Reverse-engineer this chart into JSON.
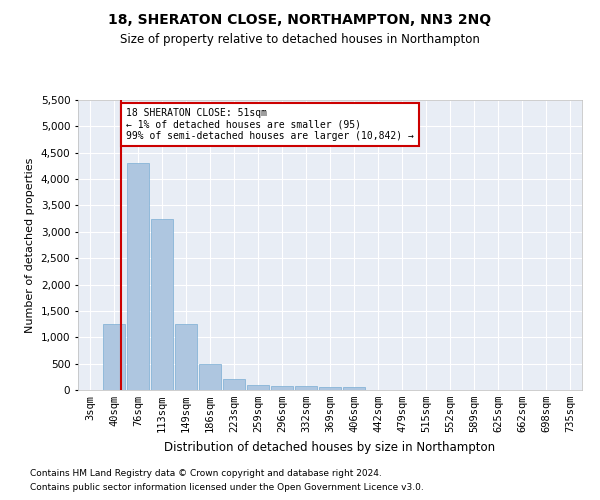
{
  "title": "18, SHERATON CLOSE, NORTHAMPTON, NN3 2NQ",
  "subtitle": "Size of property relative to detached houses in Northampton",
  "xlabel": "Distribution of detached houses by size in Northampton",
  "ylabel": "Number of detached properties",
  "footnote1": "Contains HM Land Registry data © Crown copyright and database right 2024.",
  "footnote2": "Contains public sector information licensed under the Open Government Licence v3.0.",
  "annotation_line1": "18 SHERATON CLOSE: 51sqm",
  "annotation_line2": "← 1% of detached houses are smaller (95)",
  "annotation_line3": "99% of semi-detached houses are larger (10,842) →",
  "property_size": 51,
  "bar_color": "#aec6e0",
  "bar_edge_color": "#7aadd4",
  "vline_color": "#cc0000",
  "annotation_box_color": "#cc0000",
  "background_color": "#e8edf5",
  "categories": [
    "3sqm",
    "40sqm",
    "76sqm",
    "113sqm",
    "149sqm",
    "186sqm",
    "223sqm",
    "259sqm",
    "296sqm",
    "332sqm",
    "369sqm",
    "406sqm",
    "442sqm",
    "479sqm",
    "515sqm",
    "552sqm",
    "589sqm",
    "625sqm",
    "662sqm",
    "698sqm",
    "735sqm"
  ],
  "values": [
    0,
    1250,
    4300,
    3250,
    1250,
    500,
    200,
    100,
    75,
    70,
    65,
    65,
    0,
    0,
    0,
    0,
    0,
    0,
    0,
    0,
    0
  ],
  "ylim": [
    0,
    5500
  ],
  "yticks": [
    0,
    500,
    1000,
    1500,
    2000,
    2500,
    3000,
    3500,
    4000,
    4500,
    5000,
    5500
  ]
}
